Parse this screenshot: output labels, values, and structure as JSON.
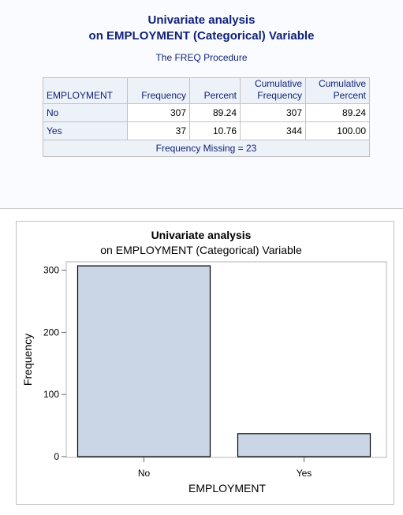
{
  "title_line1": "Univariate analysis",
  "title_line2": "on EMPLOYMENT (Categorical) Variable",
  "procedure": "The FREQ Procedure",
  "table": {
    "headers": {
      "variable": "EMPLOYMENT",
      "frequency": "Frequency",
      "percent": "Percent",
      "cum_freq_1": "Cumulative",
      "cum_freq_2": "Frequency",
      "cum_pct_1": "Cumulative",
      "cum_pct_2": "Percent"
    },
    "rows": [
      {
        "category": "No",
        "frequency": "307",
        "percent": "89.24",
        "cum_frequency": "307",
        "cum_percent": "89.24"
      },
      {
        "category": "Yes",
        "frequency": "37",
        "percent": "10.76",
        "cum_frequency": "344",
        "cum_percent": "100.00"
      }
    ],
    "footer": "Frequency Missing = 23"
  },
  "chart_data": {
    "type": "bar",
    "title": "Univariate analysis",
    "subtitle": "on EMPLOYMENT (Categorical) Variable",
    "categories": [
      "No",
      "Yes"
    ],
    "values": [
      307,
      37
    ],
    "xlabel": "EMPLOYMENT",
    "ylabel": "Frequency",
    "ylim": [
      0,
      318
    ],
    "yticks": [
      0,
      100,
      200,
      300
    ],
    "grid": false,
    "bar_color": "#cad5e5",
    "bar_edge_color": "#000000"
  }
}
